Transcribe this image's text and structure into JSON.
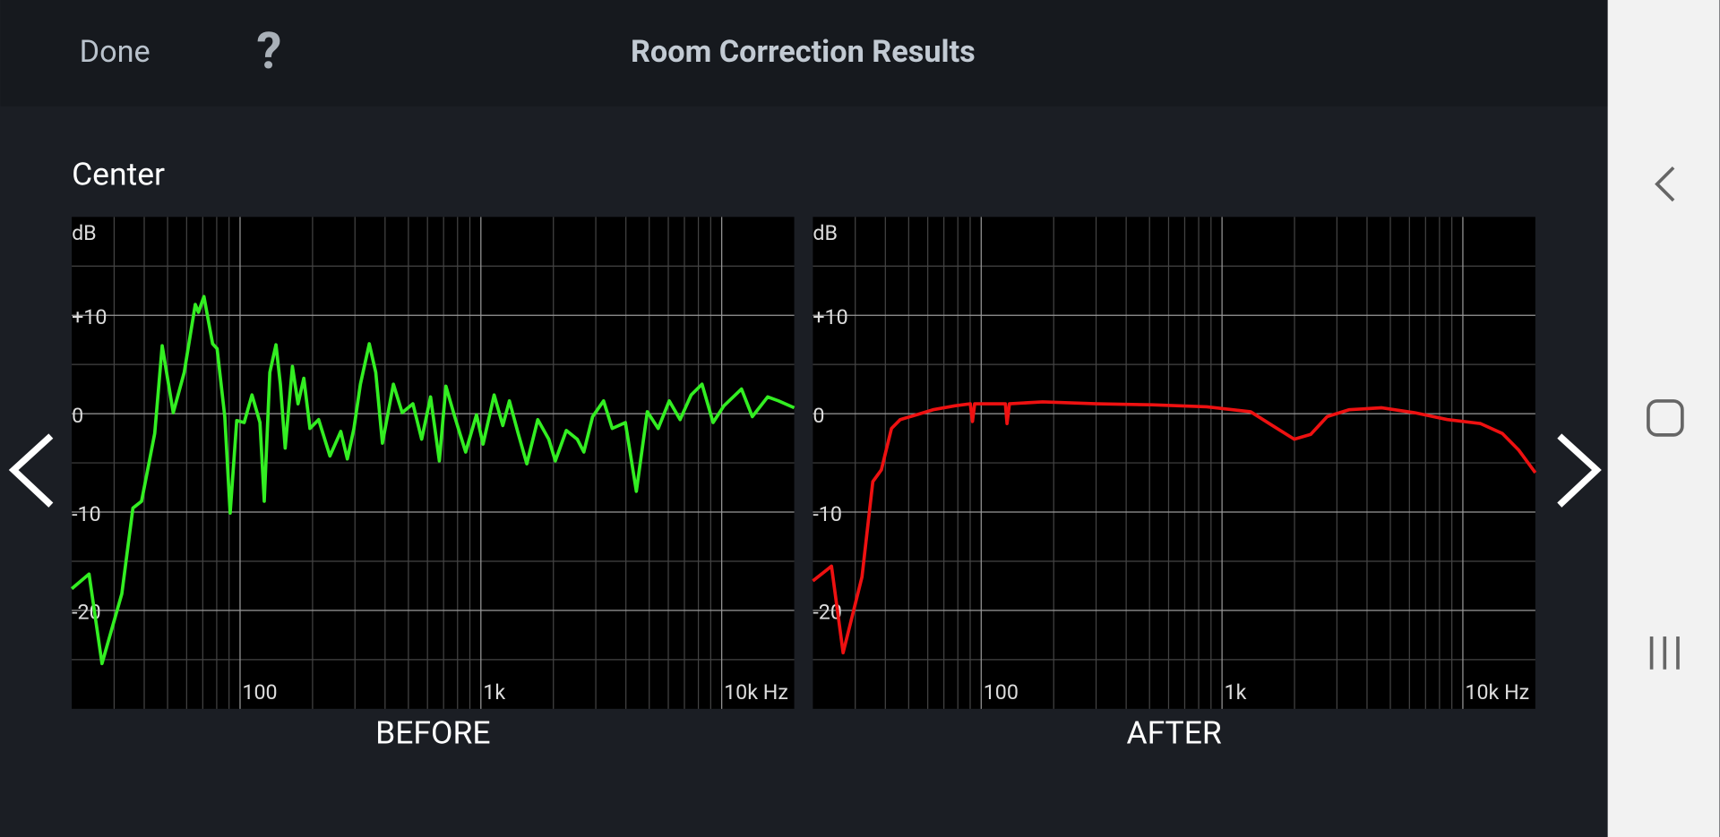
{
  "header": {
    "done": "Done",
    "help": "?",
    "title": "Room Correction Results"
  },
  "section": "Center",
  "chart_data": [
    {
      "type": "line",
      "title": "BEFORE",
      "y_unit": "dB",
      "log_x": true,
      "grid": true,
      "color": "#33ee22",
      "xlim": [
        20,
        20000
      ],
      "ylim": [
        -30,
        20
      ],
      "xticks": [
        {
          "value": 100,
          "label": "100"
        },
        {
          "value": 1000,
          "label": "1k"
        },
        {
          "value": 10000,
          "label": "10k Hz"
        }
      ],
      "x_minor_ticks": [
        30,
        40,
        50,
        60,
        70,
        80,
        90,
        200,
        300,
        400,
        500,
        600,
        700,
        800,
        900,
        2000,
        3000,
        4000,
        5000,
        6000,
        7000,
        8000,
        9000
      ],
      "yticks": [
        {
          "value": 10,
          "label": "+10"
        },
        0,
        -10,
        -20
      ],
      "y_minor_ticks": [
        -25,
        -15,
        -5,
        5,
        15
      ],
      "x": [
        20,
        23.6,
        26.7,
        32.3,
        35.9,
        39,
        44.2,
        47.5,
        52.8,
        58.6,
        65.2,
        67.2,
        70.8,
        76.9,
        80.3,
        86.4,
        91,
        96.9,
        104,
        112,
        121,
        126,
        133,
        141,
        147,
        154,
        165,
        174,
        184,
        195,
        212,
        236,
        262,
        279,
        297,
        316,
        344,
        366,
        390,
        433,
        471,
        522,
        568,
        618,
        672,
        716,
        778,
        864,
        959,
        1021,
        1135,
        1233,
        1313,
        1428,
        1552,
        1722,
        1914,
        2037,
        2263,
        2512,
        2675,
        2909,
        3231,
        3511,
        3981,
        4420,
        4909,
        5445,
        6053,
        6715,
        7464,
        8279,
        9204,
        10210,
        12080,
        13400,
        15520,
        17220,
        20000
      ],
      "values": [
        -17.8,
        -16.3,
        -25.4,
        -18.3,
        -9.6,
        -8.9,
        -2,
        6.9,
        0.1,
        4.2,
        11.1,
        10.3,
        11.9,
        7.1,
        6.6,
        -0.3,
        -10.1,
        -0.7,
        -0.9,
        1.9,
        -0.9,
        -8.9,
        4.2,
        7,
        3,
        -3.5,
        4.8,
        1,
        3.6,
        -1.5,
        -0.6,
        -4.3,
        -1.8,
        -4.6,
        -1.5,
        3,
        7.1,
        4.2,
        -3,
        3,
        0.1,
        1,
        -2.6,
        1.7,
        -4.8,
        2.8,
        -0.3,
        -3.9,
        -0.1,
        -3.1,
        1.9,
        -1.2,
        1.3,
        -2,
        -5.1,
        -0.6,
        -2.6,
        -4.8,
        -1.7,
        -2.6,
        -3.9,
        -0.3,
        1.3,
        -1.5,
        -0.9,
        -7.9,
        0.2,
        -1.5,
        1.3,
        -0.6,
        1.9,
        3,
        -0.9,
        0.8,
        2.5,
        -0.3,
        1.7,
        1.3,
        0.6
      ]
    },
    {
      "type": "line",
      "title": "AFTER",
      "y_unit": "dB",
      "log_x": true,
      "grid": true,
      "color": "#ee1111",
      "xlim": [
        20,
        20000
      ],
      "ylim": [
        -30,
        20
      ],
      "xticks": [
        {
          "value": 100,
          "label": "100"
        },
        {
          "value": 1000,
          "label": "1k"
        },
        {
          "value": 10000,
          "label": "10k Hz"
        }
      ],
      "x_minor_ticks": [
        30,
        40,
        50,
        60,
        70,
        80,
        90,
        200,
        300,
        400,
        500,
        600,
        700,
        800,
        900,
        2000,
        3000,
        4000,
        5000,
        6000,
        7000,
        8000,
        9000
      ],
      "yticks": [
        {
          "value": 10,
          "label": "+10"
        },
        0,
        -10,
        -20
      ],
      "y_minor_ticks": [
        -25,
        -15,
        -5,
        5,
        15
      ],
      "x": [
        20,
        23.9,
        26.7,
        32,
        35.5,
        38.5,
        42.4,
        46.1,
        54,
        63.1,
        77.8,
        90.1,
        92,
        94,
        126,
        128,
        131,
        180,
        303,
        512,
        864,
        1313,
        1618,
        1995,
        2335,
        2731,
        3367,
        4611,
        6310,
        8630,
        11830,
        14580,
        17060,
        20000
      ],
      "values": [
        -17,
        -15.5,
        -24.3,
        -16.6,
        -6.9,
        -5.7,
        -1.5,
        -0.6,
        -0.1,
        0.4,
        0.8,
        1,
        -0.8,
        1,
        1,
        -1,
        1,
        1.2,
        1,
        0.9,
        0.7,
        0.2,
        -1.2,
        -2.6,
        -2.1,
        -0.3,
        0.4,
        0.6,
        0.1,
        -0.6,
        -1,
        -2,
        -3.7,
        -6
      ]
    }
  ]
}
